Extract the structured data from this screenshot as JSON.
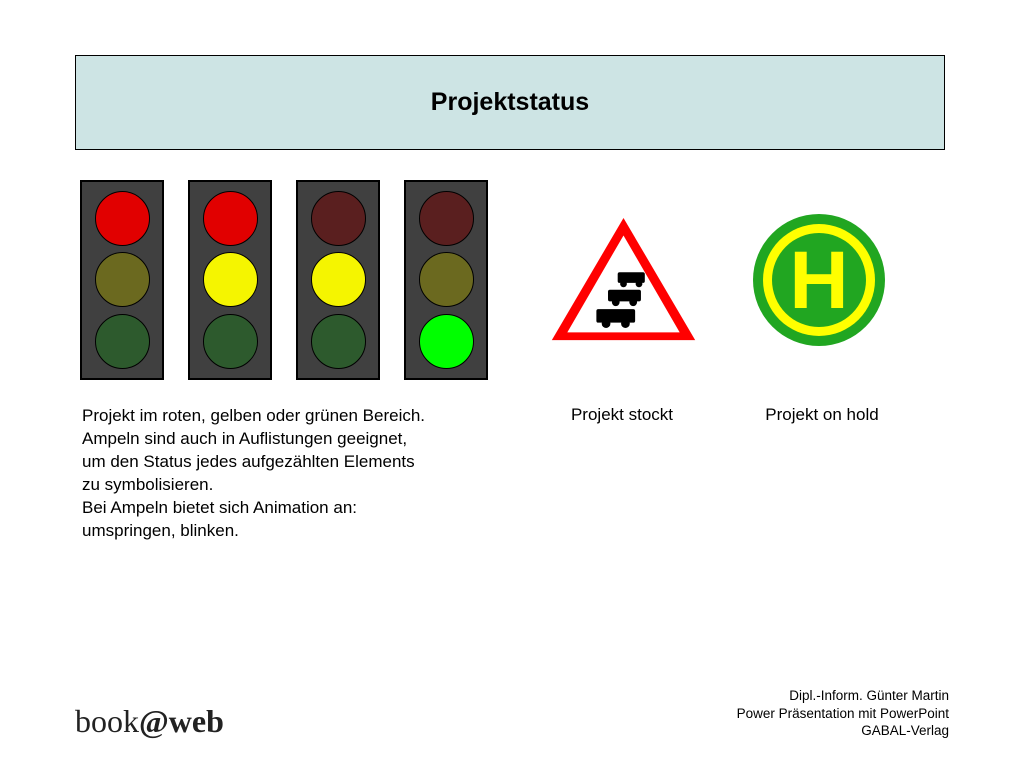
{
  "title": "Projektstatus",
  "traffic_lights": [
    {
      "top": "#e10000",
      "mid": "#6b691f",
      "bot": "#2d5a2d"
    },
    {
      "top": "#e10000",
      "mid": "#f5f500",
      "bot": "#2d5a2d"
    },
    {
      "top": "#5a1f1f",
      "mid": "#f5f500",
      "bot": "#2d5a2d"
    },
    {
      "top": "#5a1f1f",
      "mid": "#6b691f",
      "bot": "#00ff00"
    }
  ],
  "colors": {
    "title_bg": "#cde4e4",
    "title_border": "#000000",
    "light_body": "#404040",
    "light_border": "#000000",
    "triangle_border": "#ff0000",
    "triangle_fill": "#ffffff",
    "car_color": "#000000",
    "bus_outer": "#21a621",
    "bus_ring": "#ffff00",
    "bus_inner": "#21a621",
    "bus_h": "#ffff00"
  },
  "caption_left": "Projekt im roten, gelben oder grünen Bereich.\nAmpeln sind auch in Auflistungen geeignet,\num den Status jedes aufgezählten Elements\nzu symbolisieren.\nBei Ampeln bietet sich Animation an:\numspringen, blinken.",
  "caption_mid": "Projekt stockt",
  "caption_right": "Projekt on hold",
  "footer_logo": {
    "book": "book",
    "at": "@",
    "web": "web"
  },
  "footer_right_1": "Dipl.-Inform. Günter Martin",
  "footer_right_2": "Power Präsentation mit PowerPoint",
  "footer_right_3": "GABAL-Verlag"
}
